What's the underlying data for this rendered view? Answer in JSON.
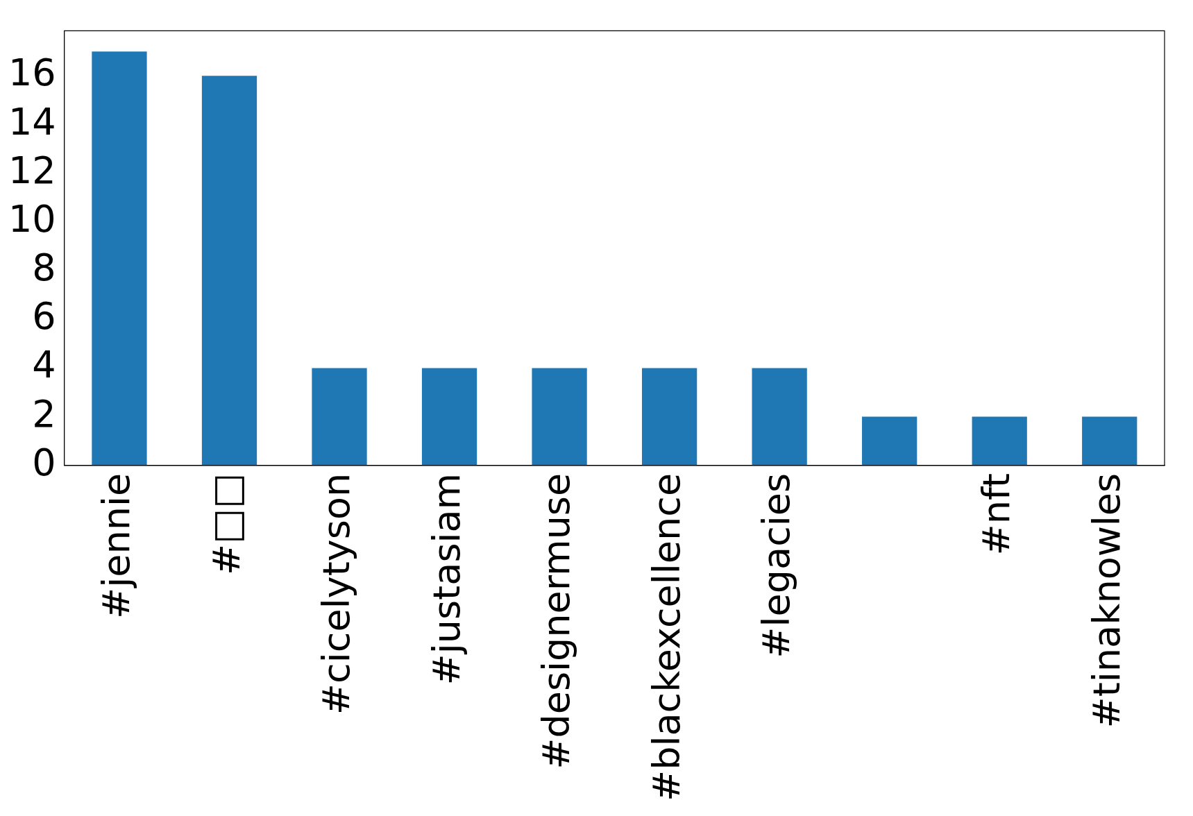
{
  "chart_data": {
    "type": "bar",
    "categories": [
      "#jennie",
      "#□□",
      "#cicelytyson",
      "#justasiam",
      "#designermuse",
      "#blackexcellence",
      "#legacies",
      null,
      "#nft",
      "#tinaknowles"
    ],
    "values": [
      17,
      16,
      4,
      4,
      4,
      4,
      4,
      2,
      2,
      2
    ],
    "color": "#1f77b4",
    "ylim": [
      0,
      17.85
    ],
    "yticks": [
      0,
      2,
      4,
      6,
      8,
      10,
      12,
      14,
      16
    ],
    "grid": false,
    "legend": false
  }
}
